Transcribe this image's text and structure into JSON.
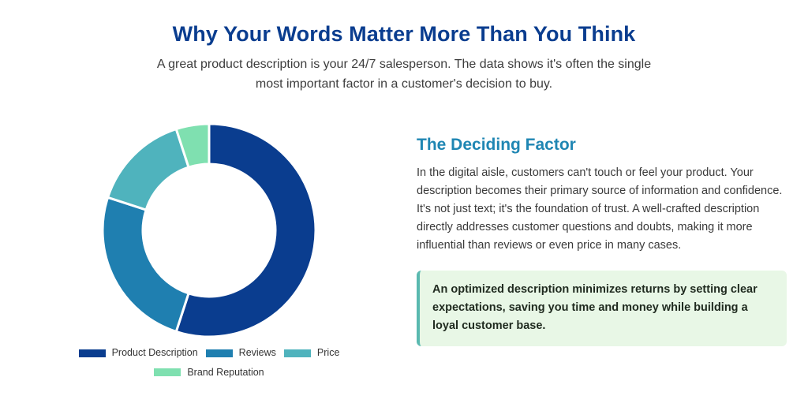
{
  "header": {
    "title": "Why Your Words Matter More Than You Think",
    "subtitle": "A great product description is your 24/7 salesperson. The data shows it's often the single most important factor in a customer's decision to buy."
  },
  "chart_data": {
    "type": "pie",
    "variant": "donut",
    "categories": [
      "Product Description",
      "Reviews",
      "Price",
      "Brand Reputation"
    ],
    "values": [
      55,
      25,
      15,
      5
    ],
    "colors": [
      "#0a3d8f",
      "#1f7fb0",
      "#4fb3bd",
      "#7fe0b0"
    ],
    "legend_position": "bottom"
  },
  "content": {
    "heading": "The Deciding Factor",
    "body": "In the digital aisle, customers can't touch or feel your product. Your description becomes their primary source of information and confidence. It's not just text; it's the foundation of trust. A well-crafted description directly addresses customer questions and doubts, making it more influential than reviews or even price in many cases.",
    "callout": "An optimized description minimizes returns by setting clear expectations, saving you time and money while building a loyal customer base."
  },
  "colors": {
    "title": "#0a3d8f",
    "heading": "#1f86b3",
    "callout_bg": "#e8f7e6",
    "callout_border": "#5ab9b0"
  }
}
